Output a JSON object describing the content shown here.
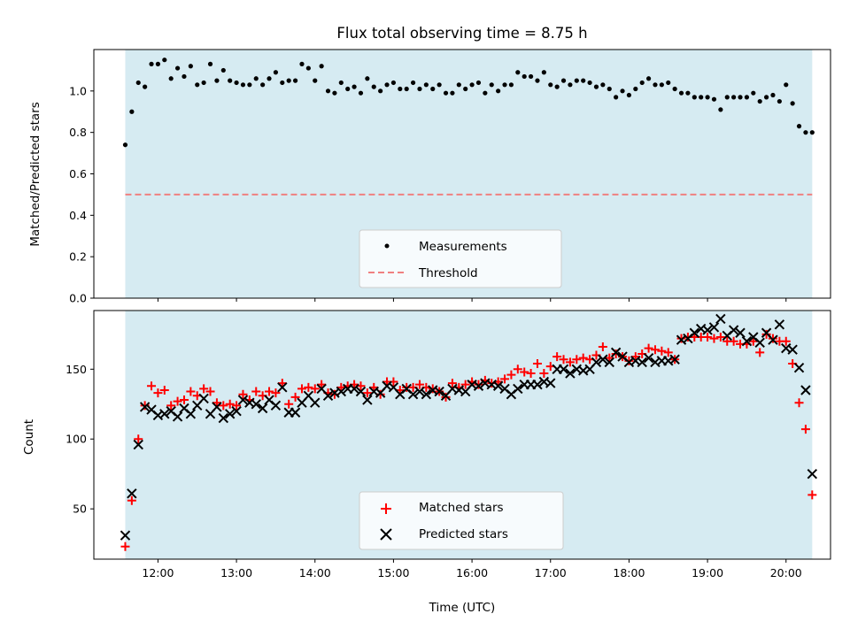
{
  "chart_data": [
    {
      "type": "scatter",
      "title": "Flux total observing time = 8.75 h",
      "xlabel": "",
      "ylabel": "Matched/Predicted stars",
      "xlim": [
        "11:11",
        "20:34"
      ],
      "ylim": [
        0,
        1.2
      ],
      "yticks": [
        "0.0",
        "0.2",
        "0.4",
        "0.6",
        "0.8",
        "1.0"
      ],
      "grid": false,
      "legend_position": "lower-center",
      "observing_window": {
        "start": "11:35",
        "end": "20:20",
        "color": "#add8e6"
      },
      "threshold": {
        "name": "Threshold",
        "value": 0.5,
        "color": "#f08080",
        "style": "dashed"
      },
      "series": [
        {
          "name": "Measurements",
          "marker": "dot",
          "color": "#000000",
          "x": [
            "11:35",
            "11:40",
            "11:45",
            "11:50",
            "11:55",
            "12:00",
            "12:05",
            "12:10",
            "12:15",
            "12:20",
            "12:25",
            "12:30",
            "12:35",
            "12:40",
            "12:45",
            "12:50",
            "12:55",
            "13:00",
            "13:05",
            "13:10",
            "13:15",
            "13:20",
            "13:25",
            "13:30",
            "13:35",
            "13:40",
            "13:45",
            "13:50",
            "13:55",
            "14:00",
            "14:05",
            "14:10",
            "14:15",
            "14:20",
            "14:25",
            "14:30",
            "14:35",
            "14:40",
            "14:45",
            "14:50",
            "14:55",
            "15:00",
            "15:05",
            "15:10",
            "15:15",
            "15:20",
            "15:25",
            "15:30",
            "15:35",
            "15:40",
            "15:45",
            "15:50",
            "15:55",
            "16:00",
            "16:05",
            "16:10",
            "16:15",
            "16:20",
            "16:25",
            "16:30",
            "16:35",
            "16:40",
            "16:45",
            "16:50",
            "16:55",
            "17:00",
            "17:05",
            "17:10",
            "17:15",
            "17:20",
            "17:25",
            "17:30",
            "17:35",
            "17:40",
            "17:45",
            "17:50",
            "17:55",
            "18:00",
            "18:05",
            "18:10",
            "18:15",
            "18:20",
            "18:25",
            "18:30",
            "18:35",
            "18:40",
            "18:45",
            "18:50",
            "18:55",
            "19:00",
            "19:05",
            "19:10",
            "19:15",
            "19:20",
            "19:25",
            "19:30",
            "19:35",
            "19:40",
            "19:45",
            "19:50",
            "19:55",
            "20:00",
            "20:05",
            "20:10",
            "20:15",
            "20:20"
          ],
          "y": [
            0.74,
            0.9,
            1.04,
            1.02,
            1.13,
            1.13,
            1.15,
            1.06,
            1.11,
            1.07,
            1.12,
            1.03,
            1.04,
            1.13,
            1.05,
            1.1,
            1.05,
            1.04,
            1.03,
            1.03,
            1.06,
            1.03,
            1.06,
            1.09,
            1.04,
            1.05,
            1.05,
            1.13,
            1.11,
            1.05,
            1.12,
            1.0,
            0.99,
            1.04,
            1.01,
            1.02,
            0.99,
            1.06,
            1.02,
            1.0,
            1.03,
            1.04,
            1.01,
            1.01,
            1.04,
            1.01,
            1.03,
            1.01,
            1.03,
            0.99,
            0.99,
            1.03,
            1.01,
            1.03,
            1.04,
            0.99,
            1.03,
            1.0,
            1.03,
            1.03,
            1.09,
            1.07,
            1.07,
            1.05,
            1.09,
            1.03,
            1.02,
            1.05,
            1.03,
            1.05,
            1.05,
            1.04,
            1.02,
            1.03,
            1.01,
            0.97,
            1.0,
            0.98,
            1.01,
            1.04,
            1.06,
            1.03,
            1.03,
            1.04,
            1.01,
            0.99,
            0.99,
            0.97,
            0.97,
            0.97,
            0.96,
            0.91,
            0.97,
            0.97,
            0.97,
            0.97,
            0.99,
            0.95,
            0.97,
            0.98,
            0.95,
            1.03,
            0.94,
            0.83,
            0.8,
            0.8
          ]
        }
      ]
    },
    {
      "type": "scatter",
      "title": "",
      "xlabel": "Time (UTC)",
      "ylabel": "Count",
      "xlim": [
        "11:11",
        "20:34"
      ],
      "ylim": [
        14,
        192
      ],
      "xticks": [
        "12:00",
        "13:00",
        "14:00",
        "15:00",
        "16:00",
        "17:00",
        "18:00",
        "19:00",
        "20:00"
      ],
      "yticks": [
        "50",
        "100",
        "150"
      ],
      "grid": false,
      "legend_position": "lower-center",
      "observing_window": {
        "start": "11:35",
        "end": "20:20",
        "color": "#add8e6"
      },
      "series": [
        {
          "name": "Matched stars",
          "marker": "plus",
          "color": "#ff0000",
          "x": [
            "11:35",
            "11:40",
            "11:45",
            "11:50",
            "11:55",
            "12:00",
            "12:05",
            "12:10",
            "12:15",
            "12:20",
            "12:25",
            "12:30",
            "12:35",
            "12:40",
            "12:45",
            "12:50",
            "12:55",
            "13:00",
            "13:05",
            "13:10",
            "13:15",
            "13:20",
            "13:25",
            "13:30",
            "13:35",
            "13:40",
            "13:45",
            "13:50",
            "13:55",
            "14:00",
            "14:05",
            "14:10",
            "14:15",
            "14:20",
            "14:25",
            "14:30",
            "14:35",
            "14:40",
            "14:45",
            "14:50",
            "14:55",
            "15:00",
            "15:05",
            "15:10",
            "15:15",
            "15:20",
            "15:25",
            "15:30",
            "15:35",
            "15:40",
            "15:45",
            "15:50",
            "15:55",
            "16:00",
            "16:05",
            "16:10",
            "16:15",
            "16:20",
            "16:25",
            "16:30",
            "16:35",
            "16:40",
            "16:45",
            "16:50",
            "16:55",
            "17:00",
            "17:05",
            "17:10",
            "17:15",
            "17:20",
            "17:25",
            "17:30",
            "17:35",
            "17:40",
            "17:45",
            "17:50",
            "17:55",
            "18:00",
            "18:05",
            "18:10",
            "18:15",
            "18:20",
            "18:25",
            "18:30",
            "18:35",
            "18:40",
            "18:45",
            "18:50",
            "18:55",
            "19:00",
            "19:05",
            "19:10",
            "19:15",
            "19:20",
            "19:25",
            "19:30",
            "19:35",
            "19:40",
            "19:45",
            "19:50",
            "19:55",
            "20:00",
            "20:05",
            "20:10",
            "20:15",
            "20:20"
          ],
          "y": [
            23,
            56,
            100,
            124,
            138,
            133,
            135,
            124,
            127,
            128,
            134,
            131,
            136,
            134,
            126,
            124,
            125,
            124,
            132,
            128,
            134,
            131,
            134,
            133,
            140,
            125,
            130,
            136,
            137,
            136,
            139,
            133,
            132,
            137,
            138,
            139,
            138,
            133,
            137,
            132,
            141,
            141,
            135,
            137,
            137,
            139,
            137,
            136,
            134,
            130,
            140,
            137,
            139,
            141,
            139,
            142,
            140,
            141,
            143,
            146,
            150,
            148,
            147,
            154,
            147,
            152,
            159,
            157,
            155,
            157,
            158,
            157,
            160,
            166,
            158,
            161,
            159,
            156,
            159,
            161,
            165,
            164,
            163,
            162,
            157,
            172,
            173,
            173,
            173,
            173,
            172,
            173,
            170,
            170,
            168,
            168,
            170,
            162,
            175,
            172,
            170,
            170,
            154,
            126,
            107,
            60
          ]
        },
        {
          "name": "Predicted stars",
          "marker": "x",
          "color": "#000000",
          "x": [
            "11:35",
            "11:40",
            "11:45",
            "11:50",
            "11:55",
            "12:00",
            "12:05",
            "12:10",
            "12:15",
            "12:20",
            "12:25",
            "12:30",
            "12:35",
            "12:40",
            "12:45",
            "12:50",
            "12:55",
            "13:00",
            "13:05",
            "13:10",
            "13:15",
            "13:20",
            "13:25",
            "13:30",
            "13:35",
            "13:40",
            "13:45",
            "13:50",
            "13:55",
            "14:00",
            "14:05",
            "14:10",
            "14:15",
            "14:20",
            "14:25",
            "14:30",
            "14:35",
            "14:40",
            "14:45",
            "14:50",
            "14:55",
            "15:00",
            "15:05",
            "15:10",
            "15:15",
            "15:20",
            "15:25",
            "15:30",
            "15:35",
            "15:40",
            "15:45",
            "15:50",
            "15:55",
            "16:00",
            "16:05",
            "16:10",
            "16:15",
            "16:20",
            "16:25",
            "16:30",
            "16:35",
            "16:40",
            "16:45",
            "16:50",
            "16:55",
            "17:00",
            "17:05",
            "17:10",
            "17:15",
            "17:20",
            "17:25",
            "17:30",
            "17:35",
            "17:40",
            "17:45",
            "17:50",
            "17:55",
            "18:00",
            "18:05",
            "18:10",
            "18:15",
            "18:20",
            "18:25",
            "18:30",
            "18:35",
            "18:40",
            "18:45",
            "18:50",
            "18:55",
            "19:00",
            "19:05",
            "19:10",
            "19:15",
            "19:20",
            "19:25",
            "19:30",
            "19:35",
            "19:40",
            "19:45",
            "19:50",
            "19:55",
            "20:00",
            "20:05",
            "20:10",
            "20:15",
            "20:20"
          ],
          "y": [
            31,
            61,
            96,
            123,
            121,
            117,
            118,
            120,
            116,
            122,
            118,
            124,
            129,
            118,
            123,
            115,
            118,
            120,
            128,
            126,
            125,
            122,
            128,
            124,
            137,
            119,
            119,
            126,
            131,
            126,
            136,
            131,
            133,
            134,
            136,
            136,
            134,
            128,
            134,
            133,
            138,
            137,
            132,
            136,
            132,
            134,
            132,
            135,
            134,
            131,
            136,
            135,
            134,
            139,
            138,
            140,
            139,
            138,
            136,
            132,
            136,
            139,
            139,
            139,
            141,
            140,
            150,
            150,
            147,
            150,
            149,
            150,
            155,
            157,
            155,
            162,
            159,
            155,
            156,
            155,
            158,
            155,
            156,
            156,
            157,
            171,
            172,
            176,
            179,
            178,
            180,
            186,
            174,
            178,
            176,
            170,
            173,
            169,
            176,
            171,
            182,
            165,
            164,
            151,
            135,
            75
          ]
        }
      ]
    }
  ]
}
